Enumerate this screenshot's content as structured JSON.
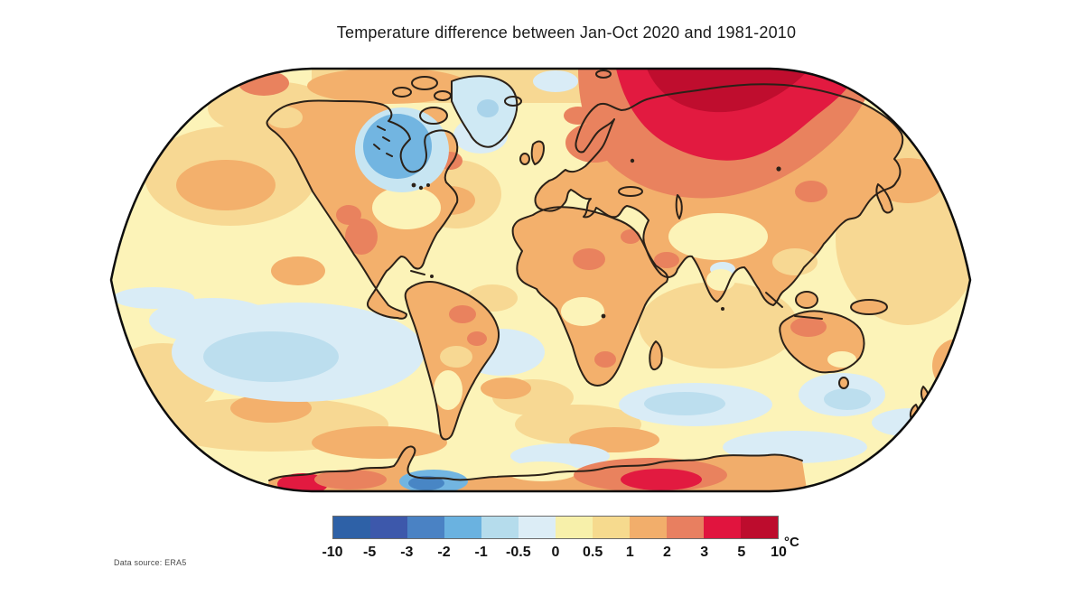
{
  "title": "Temperature difference between Jan-Oct 2020 and 1981-2010",
  "footer": {
    "data_source": "Data source: ERA5"
  },
  "colorbar": {
    "unit_label": "°C",
    "ticks": [
      "-10",
      "-5",
      "-3",
      "-2",
      "-1",
      "-0.5",
      "0",
      "0.5",
      "1",
      "2",
      "3",
      "5",
      "10"
    ],
    "segment_colors": [
      "#2e61a7",
      "#3d58ab",
      "#4a82c4",
      "#6ab2e0",
      "#b5dcec",
      "#dcedf6",
      "#f7f0aa",
      "#f6da8e",
      "#f2ae6b",
      "#e87f60",
      "#e1143e",
      "#bd0c2d"
    ]
  },
  "chart_data": {
    "type": "heatmap",
    "subtype": "filled-contour anomaly map on Robinson-projection world map",
    "title": "Temperature difference between Jan-Oct 2020 and 1981-2010",
    "variable": "surface air temperature anomaly",
    "analysis_period": "Jan-Oct 2020",
    "baseline_period": "1981-2010",
    "unit": "°C",
    "data_source": "ERA5",
    "legend_position": "bottom center, horizontal colorbar",
    "scale": {
      "tick_values": [
        -10,
        -5,
        -3,
        -2,
        -1,
        -0.5,
        0,
        0.5,
        1,
        2,
        3,
        5,
        10
      ],
      "segment_colors": [
        "#2e61a7",
        "#3d58ab",
        "#4a82c4",
        "#6ab2e0",
        "#b5dcec",
        "#dcedf6",
        "#f7f0aa",
        "#f6da8e",
        "#f2ae6b",
        "#e87f60",
        "#e1143e",
        "#bd0c2d"
      ]
    },
    "notable_regions": [
      {
        "region": "Arctic Siberia core (north-central Russia)",
        "anomaly_c": "+5 to +10"
      },
      {
        "region": "Siberia / northern Russia around core",
        "anomaly_c": "+3 to +5"
      },
      {
        "region": "Eastern Europe, Scandinavia, northeast Asia ring",
        "anomaly_c": "+2 to +3"
      },
      {
        "region": "Most land (western North America, Europe, Asia, Africa, NW Australia)",
        "anomaly_c": "+1 to +2"
      },
      {
        "region": "Most ocean areas",
        "anomaly_c": "0 to +1"
      },
      {
        "region": "Hudson Bay / north-central Canada",
        "anomaly_c": "-2 to -1"
      },
      {
        "region": "Greenland and ocean south of Greenland",
        "anomaly_c": "-1 to 0"
      },
      {
        "region": "Southeast Pacific Ocean",
        "anomaly_c": "-1 to 0"
      },
      {
        "region": "Southern Indian Ocean and south of Australia",
        "anomaly_c": "-1 to 0"
      },
      {
        "region": "West Antarctica interior patch",
        "anomaly_c": "+2 to +5"
      },
      {
        "region": "Antarctic coast near Ross Sea",
        "anomaly_c": "-3 to -2"
      }
    ]
  }
}
